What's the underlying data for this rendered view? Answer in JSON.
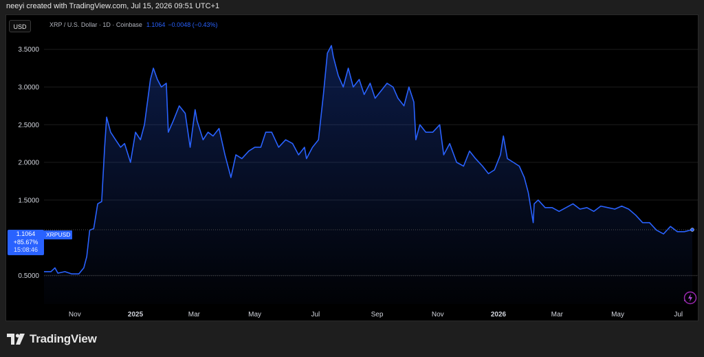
{
  "header": {
    "text": "neeyi created with TradingView.com, Jul 15, 2026 09:51 UTC+1"
  },
  "toolbar": {
    "currency_label": "USD"
  },
  "symbol": {
    "name": "XRP / U.S. Dollar · 1D · Coinbase",
    "price": "1.1064",
    "change": "−0.0048 (−0.43%)"
  },
  "price_tag": {
    "price": "1.1064",
    "percent": "+85.67%",
    "countdown": "15:08:46",
    "symbol": "XRPUSD"
  },
  "footer": {
    "brand": "TradingView"
  },
  "colors": {
    "line": "#2962ff",
    "background": "#000000",
    "text": "#d1d4dc",
    "grid": "#1c1c1c"
  },
  "icons": {
    "logo": "tradingview-logo-icon",
    "bolt": "lightning-icon"
  },
  "chart_data": {
    "type": "area",
    "symbol": "XRPUSD",
    "y_ticks": [
      "3.5000",
      "3.0000",
      "2.5000",
      "2.0000",
      "1.5000",
      "0.5000"
    ],
    "y_tick_values": [
      3.5,
      3.0,
      2.5,
      2.0,
      1.5,
      0.5
    ],
    "ylim": [
      0.12,
      3.68
    ],
    "xlim": [
      "2024-10-01",
      "2026-07-15"
    ],
    "x_ticks": [
      {
        "label": "Nov",
        "date": "2024-11-01"
      },
      {
        "label": "2025",
        "date": "2025-01-01"
      },
      {
        "label": "Mar",
        "date": "2025-03-01"
      },
      {
        "label": "May",
        "date": "2025-05-01"
      },
      {
        "label": "Jul",
        "date": "2025-07-01"
      },
      {
        "label": "Sep",
        "date": "2025-09-01"
      },
      {
        "label": "Nov",
        "date": "2025-11-01"
      },
      {
        "label": "2026",
        "date": "2026-01-01"
      },
      {
        "label": "Mar",
        "date": "2026-03-01"
      },
      {
        "label": "May",
        "date": "2026-05-01"
      },
      {
        "label": "Jul",
        "date": "2026-07-01"
      }
    ],
    "last_value": 1.1064,
    "series": [
      {
        "x": [
          "2024-10-01",
          "2024-10-08",
          "2024-10-12",
          "2024-10-15",
          "2024-10-22",
          "2024-10-29",
          "2024-11-05",
          "2024-11-10",
          "2024-11-13",
          "2024-11-16",
          "2024-11-20",
          "2024-11-24",
          "2024-11-28",
          "2024-12-01",
          "2024-12-03",
          "2024-12-07",
          "2024-12-12",
          "2024-12-17",
          "2024-12-21",
          "2024-12-27",
          "2025-01-01",
          "2025-01-06",
          "2025-01-10",
          "2025-01-16",
          "2025-01-19",
          "2025-01-23",
          "2025-01-27",
          "2025-02-01",
          "2025-02-03",
          "2025-02-08",
          "2025-02-14",
          "2025-02-20",
          "2025-02-25",
          "2025-03-02",
          "2025-03-04",
          "2025-03-10",
          "2025-03-15",
          "2025-03-20",
          "2025-03-26",
          "2025-04-01",
          "2025-04-07",
          "2025-04-12",
          "2025-04-18",
          "2025-04-25",
          "2025-05-01",
          "2025-05-07",
          "2025-05-12",
          "2025-05-18",
          "2025-05-25",
          "2025-06-01",
          "2025-06-08",
          "2025-06-14",
          "2025-06-20",
          "2025-06-22",
          "2025-06-28",
          "2025-07-04",
          "2025-07-09",
          "2025-07-13",
          "2025-07-17",
          "2025-07-19",
          "2025-07-24",
          "2025-07-29",
          "2025-08-03",
          "2025-08-08",
          "2025-08-14",
          "2025-08-19",
          "2025-08-25",
          "2025-08-30",
          "2025-09-05",
          "2025-09-11",
          "2025-09-17",
          "2025-09-22",
          "2025-09-28",
          "2025-10-03",
          "2025-10-08",
          "2025-10-10",
          "2025-10-14",
          "2025-10-20",
          "2025-10-27",
          "2025-11-03",
          "2025-11-07",
          "2025-11-13",
          "2025-11-20",
          "2025-11-27",
          "2025-12-03",
          "2025-12-09",
          "2025-12-16",
          "2025-12-22",
          "2025-12-28",
          "2026-01-03",
          "2026-01-06",
          "2026-01-10",
          "2026-01-16",
          "2026-01-22",
          "2026-01-27",
          "2026-01-31",
          "2026-02-05",
          "2026-02-06",
          "2026-02-10",
          "2026-02-17",
          "2026-02-24",
          "2026-03-03",
          "2026-03-10",
          "2026-03-17",
          "2026-03-24",
          "2026-03-31",
          "2026-04-07",
          "2026-04-14",
          "2026-04-21",
          "2026-04-28",
          "2026-05-05",
          "2026-05-12",
          "2026-05-19",
          "2026-05-26",
          "2026-06-02",
          "2026-06-09",
          "2026-06-16",
          "2026-06-23",
          "2026-06-30",
          "2026-07-07",
          "2026-07-15"
        ],
        "y": [
          0.55,
          0.55,
          0.6,
          0.53,
          0.55,
          0.52,
          0.52,
          0.6,
          0.75,
          1.1,
          1.12,
          1.45,
          1.48,
          2.2,
          2.6,
          2.4,
          2.3,
          2.2,
          2.25,
          2.0,
          2.4,
          2.3,
          2.5,
          3.1,
          3.25,
          3.1,
          3.0,
          3.05,
          2.4,
          2.55,
          2.75,
          2.65,
          2.2,
          2.7,
          2.55,
          2.3,
          2.4,
          2.35,
          2.45,
          2.1,
          1.8,
          2.1,
          2.05,
          2.15,
          2.2,
          2.2,
          2.4,
          2.4,
          2.2,
          2.3,
          2.25,
          2.1,
          2.2,
          2.05,
          2.2,
          2.3,
          2.9,
          3.45,
          3.55,
          3.4,
          3.15,
          3.0,
          3.25,
          3.0,
          3.1,
          2.9,
          3.05,
          2.85,
          2.95,
          3.05,
          3.0,
          2.85,
          2.75,
          3.0,
          2.8,
          2.3,
          2.5,
          2.4,
          2.4,
          2.5,
          2.1,
          2.25,
          2.0,
          1.95,
          2.15,
          2.05,
          1.95,
          1.85,
          1.9,
          2.1,
          2.35,
          2.05,
          2.0,
          1.95,
          1.8,
          1.6,
          1.2,
          1.45,
          1.5,
          1.4,
          1.4,
          1.35,
          1.4,
          1.45,
          1.38,
          1.4,
          1.35,
          1.42,
          1.4,
          1.38,
          1.42,
          1.38,
          1.3,
          1.2,
          1.2,
          1.1,
          1.05,
          1.15,
          1.08,
          1.08,
          1.1064
        ]
      }
    ]
  }
}
